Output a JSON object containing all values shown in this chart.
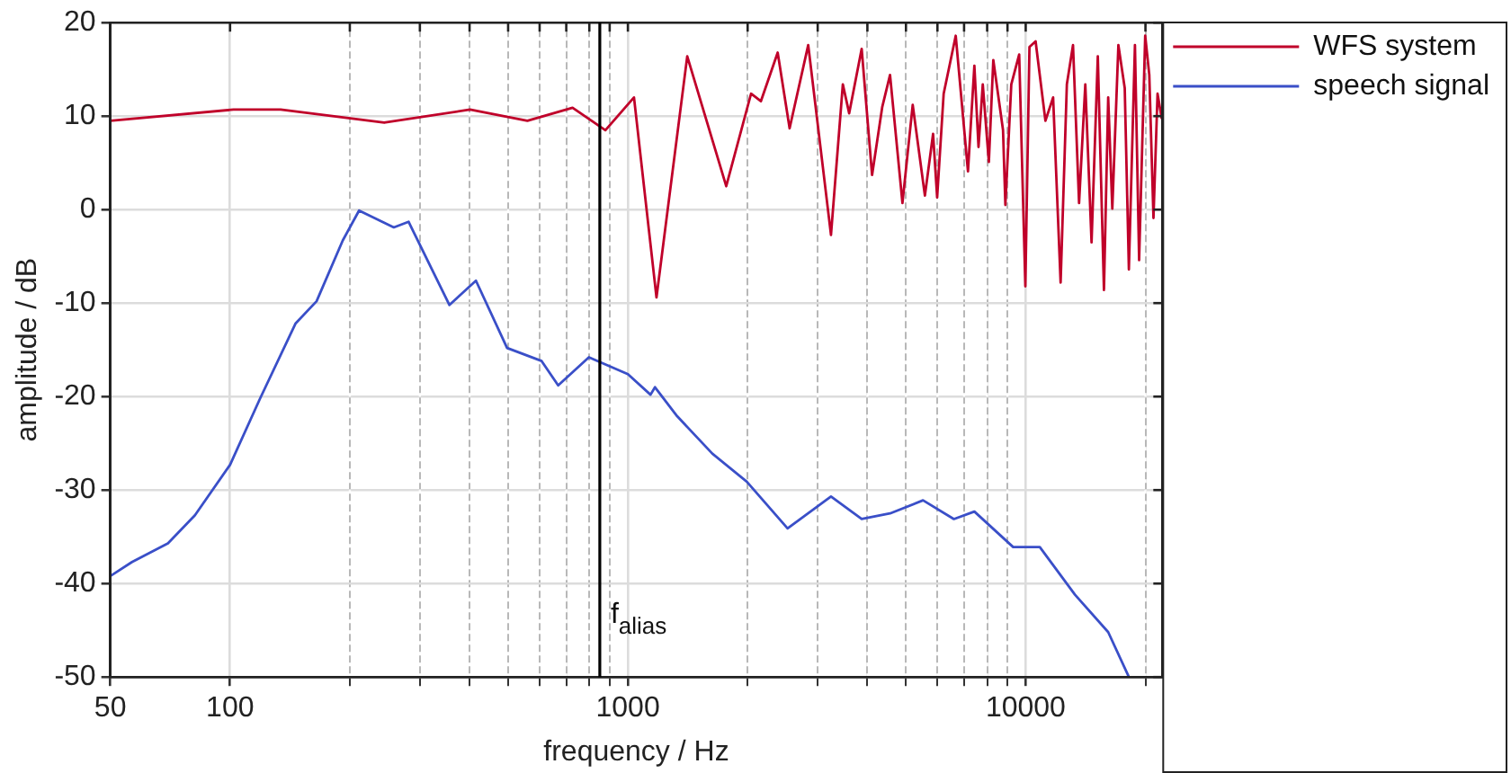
{
  "chart_data": {
    "type": "line",
    "xlabel": "frequency / Hz",
    "ylabel": "amplitude / dB",
    "log": "x",
    "grid": true,
    "legend": "right",
    "line_style": "solid",
    "marker": "none",
    "xlim": [
      50,
      22050
    ],
    "ylim": [
      -50,
      20
    ],
    "xticks": [
      50,
      100,
      {
        "value": 200,
        "label": null
      },
      {
        "value": 300,
        "label": null
      },
      {
        "value": 400,
        "label": null
      },
      {
        "value": 500,
        "label": null
      },
      {
        "value": 600,
        "label": null
      },
      {
        "value": 700,
        "label": null
      },
      {
        "value": 800,
        "label": null
      },
      {
        "value": 900,
        "label": null
      },
      1000,
      {
        "value": 2000,
        "label": null
      },
      {
        "value": 3000,
        "label": null
      },
      {
        "value": 4000,
        "label": null
      },
      {
        "value": 5000,
        "label": null
      },
      {
        "value": 6000,
        "label": null
      },
      {
        "value": 7000,
        "label": null
      },
      {
        "value": 8000,
        "label": null
      },
      {
        "value": 9000,
        "label": null
      },
      10000,
      {
        "value": 20000,
        "label": null
      }
    ],
    "yticks": [
      -50,
      -40,
      -30,
      -20,
      -10,
      0,
      10,
      20
    ],
    "ref_lines": [
      {
        "axis": "x",
        "value": 850,
        "label": "f$_{alias}$",
        "color": "#000000"
      }
    ],
    "series": [
      {
        "name": "WFS system",
        "color": "#c0002a",
        "x": [
          50,
          102,
          134,
          244,
          401,
          559,
          726,
          878,
          1036,
          1180,
          1410,
          1767,
          2040,
          2160,
          2380,
          2550,
          2840,
          3240,
          3470,
          3600,
          3870,
          4110,
          4360,
          4560,
          4900,
          5200,
          5580,
          5850,
          5990,
          6220,
          6670,
          7160,
          7430,
          7610,
          7800,
          8080,
          8290,
          8770,
          8890,
          9200,
          9630,
          9980,
          10220,
          10590,
          11210,
          11720,
          12240,
          12690,
          13150,
          13620,
          14120,
          14640,
          15180,
          15730,
          16120,
          16510,
          17100,
          17740,
          18170,
          18820,
          19280,
          19970,
          20450,
          20950,
          21450,
          21980
        ],
        "values": [
          9.5,
          10.7,
          10.7,
          9.3,
          10.7,
          9.5,
          10.9,
          8.5,
          12,
          -9.4,
          16.4,
          2.5,
          12.4,
          11.6,
          16.8,
          8.7,
          17.6,
          -2.7,
          13.4,
          10.3,
          17.2,
          3.7,
          11,
          14.4,
          0.7,
          11.2,
          1.5,
          8.1,
          1.3,
          12.4,
          18.6,
          4.1,
          15.4,
          6.7,
          13.4,
          5.1,
          16,
          8.5,
          0.5,
          13.4,
          16.6,
          -8.2,
          17.4,
          18,
          9.5,
          12,
          -7.8,
          13.4,
          17.6,
          0.7,
          13.4,
          -3.5,
          16.4,
          -8.6,
          12,
          0.1,
          17.6,
          13,
          -6.4,
          17.6,
          -5.4,
          18.6,
          14.4,
          -0.9,
          12.4,
          9.7
        ]
      },
      {
        "name": "speech signal",
        "color": "#3a4fc8",
        "x": [
          50,
          56.7,
          69.8,
          81.6,
          100,
          119,
          146,
          165,
          192,
          211,
          258,
          281,
          356,
          415,
          497,
          607,
          668,
          798,
          1000,
          1140,
          1170,
          1330,
          1630,
          1990,
          2520,
          3240,
          3870,
          4560,
          5520,
          6600,
          7430,
          9300,
          10850,
          13300,
          16120,
          18170
        ],
        "values": [
          -39.2,
          -37.7,
          -35.7,
          -32.7,
          -27.3,
          -20.2,
          -12.2,
          -9.8,
          -3.3,
          -0.1,
          -1.9,
          -1.3,
          -10.2,
          -7.6,
          -14.8,
          -16.2,
          -18.8,
          -15.8,
          -17.6,
          -19.8,
          -19,
          -22.1,
          -26.1,
          -29.1,
          -34.1,
          -30.7,
          -33.1,
          -32.5,
          -31.1,
          -33.1,
          -32.3,
          -36.1,
          -36.1,
          -41.2,
          -45.2,
          -50
        ]
      }
    ]
  }
}
